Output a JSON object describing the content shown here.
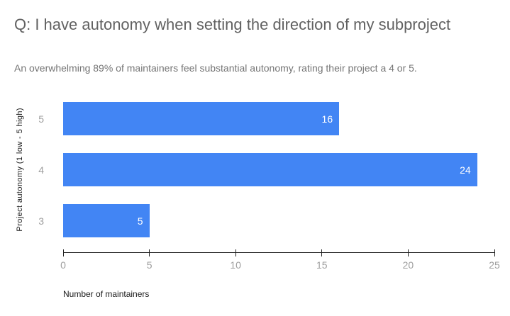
{
  "chart_data": {
    "type": "bar",
    "orientation": "horizontal",
    "title": "Q: I have autonomy when setting the direction of my subproject",
    "subtitle": "An overwhelming 89% of maintainers feel substantial autonomy, rating their project a 4 or 5.",
    "xlabel": "Number of maintainers",
    "ylabel": "Project autonomy (1 low - 5 high)",
    "categories": [
      "5",
      "4",
      "3"
    ],
    "values": [
      16,
      24,
      5
    ],
    "xlim": [
      0,
      25
    ],
    "xticks": [
      0,
      5,
      10,
      15,
      20,
      25
    ],
    "grid": false,
    "legend": "none",
    "bar_color": "#4285f4",
    "value_label_color": "#ffffff"
  },
  "colors": {
    "background": "#ffffff",
    "bar": "#4285f4",
    "title_text": "#616161",
    "subtitle_text": "#757575",
    "axis_tick_text": "#9e9e9e",
    "axis_title_text": "#1a1a1a",
    "axis_line": "#212121",
    "bar_value_text": "#ffffff"
  }
}
